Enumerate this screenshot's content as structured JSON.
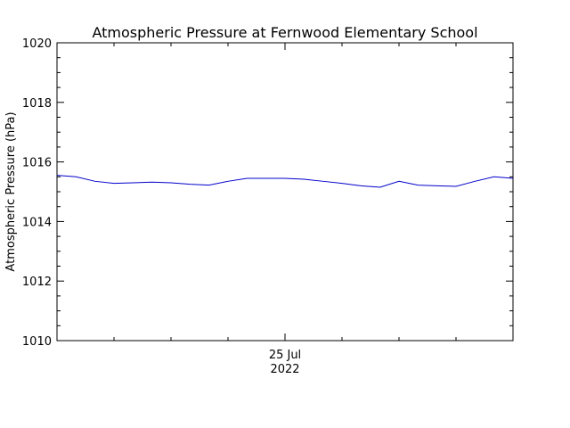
{
  "chart_data": {
    "type": "line",
    "title": "Atmospheric Pressure at Fernwood Elementary School",
    "xlabel": "",
    "ylabel": "Atmospheric Pressure (hPa)",
    "ylim": [
      1010,
      1020
    ],
    "yticks": [
      1010,
      1012,
      1014,
      1016,
      1018,
      1020
    ],
    "ytick_labels": [
      "1010",
      "1012",
      "1014",
      "1016",
      "1018",
      "1020"
    ],
    "yminor_step": 0.5,
    "xlim": [
      "2022-07-24 12:00",
      "2022-07-25 12:00"
    ],
    "xtick_major": [
      "2022-07-25 00:00"
    ],
    "xtick_labels": [
      {
        "date": "2022-07-25 00:00",
        "line1": "25 Jul",
        "line2": "2022"
      }
    ],
    "xminor_hours": [
      3,
      6,
      9,
      12,
      15,
      18,
      21
    ],
    "grid": false,
    "legend": "none",
    "series": [
      {
        "color": "#0000cc",
        "x": [
          "2022-07-24 12:00",
          "2022-07-24 13:00",
          "2022-07-24 14:00",
          "2022-07-24 15:00",
          "2022-07-24 16:00",
          "2022-07-24 17:00",
          "2022-07-24 18:00",
          "2022-07-24 19:00",
          "2022-07-24 20:00",
          "2022-07-24 21:00",
          "2022-07-24 22:00",
          "2022-07-24 23:00",
          "2022-07-25 00:00",
          "2022-07-25 01:00",
          "2022-07-25 02:00",
          "2022-07-25 03:00",
          "2022-07-25 04:00",
          "2022-07-25 05:00",
          "2022-07-25 06:00",
          "2022-07-25 07:00",
          "2022-07-25 08:00",
          "2022-07-25 09:00",
          "2022-07-25 10:00",
          "2022-07-25 11:00",
          "2022-07-25 12:00"
        ],
        "y": [
          1015.55,
          1015.5,
          1015.35,
          1015.28,
          1015.3,
          1015.32,
          1015.3,
          1015.25,
          1015.22,
          1015.35,
          1015.45,
          1015.45,
          1015.45,
          1015.42,
          1015.35,
          1015.28,
          1015.2,
          1015.15,
          1015.35,
          1015.22,
          1015.2,
          1015.18,
          1015.35,
          1015.5,
          1015.45
        ]
      }
    ]
  }
}
